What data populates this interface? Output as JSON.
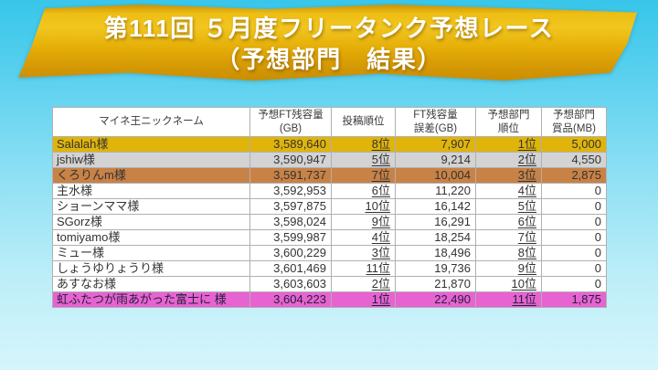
{
  "banner": {
    "line1": "第111回 ５月度フリータンク予想レース",
    "line2": "（予想部門　結果）",
    "gold_color": "#E8B410"
  },
  "table": {
    "headers": [
      "マイネ王ニックネーム",
      "予想FT残容量\n(GB)",
      "投稿順位",
      "FT残容量\n誤差(GB)",
      "予想部門\n順位",
      "予想部門\n賞品(MB)"
    ],
    "highlight_colors": {
      "gold": "#E0B40A",
      "silver": "#D3D3D3",
      "bronze": "#C88246",
      "pink": "#E763D2"
    },
    "rows": [
      {
        "nickname": "Salalah様",
        "forecast_gb": "3,589,640",
        "post_rank": "8位",
        "error_gb": "7,907",
        "dept_rank": "1位",
        "prize_mb": "5,000",
        "highlight": "gold"
      },
      {
        "nickname": "jshiw様",
        "forecast_gb": "3,590,947",
        "post_rank": "5位",
        "error_gb": "9,214",
        "dept_rank": "2位",
        "prize_mb": "4,550",
        "highlight": "silver"
      },
      {
        "nickname": "くろりんm様",
        "forecast_gb": "3,591,737",
        "post_rank": "7位",
        "error_gb": "10,004",
        "dept_rank": "3位",
        "prize_mb": "2,875",
        "highlight": "bronze"
      },
      {
        "nickname": "主水様",
        "forecast_gb": "3,592,953",
        "post_rank": "6位",
        "error_gb": "11,220",
        "dept_rank": "4位",
        "prize_mb": "0",
        "highlight": "none"
      },
      {
        "nickname": "ショーンママ様",
        "forecast_gb": "3,597,875",
        "post_rank": "10位",
        "error_gb": "16,142",
        "dept_rank": "5位",
        "prize_mb": "0",
        "highlight": "none"
      },
      {
        "nickname": "SGorz様",
        "forecast_gb": "3,598,024",
        "post_rank": "9位",
        "error_gb": "16,291",
        "dept_rank": "6位",
        "prize_mb": "0",
        "highlight": "none"
      },
      {
        "nickname": "tomiyamo様",
        "forecast_gb": "3,599,987",
        "post_rank": "4位",
        "error_gb": "18,254",
        "dept_rank": "7位",
        "prize_mb": "0",
        "highlight": "none"
      },
      {
        "nickname": "ミュー様",
        "forecast_gb": "3,600,229",
        "post_rank": "3位",
        "error_gb": "18,496",
        "dept_rank": "8位",
        "prize_mb": "0",
        "highlight": "none"
      },
      {
        "nickname": "しょうゆりょうり様",
        "forecast_gb": "3,601,469",
        "post_rank": "11位",
        "error_gb": "19,736",
        "dept_rank": "9位",
        "prize_mb": "0",
        "highlight": "none"
      },
      {
        "nickname": "あすなお様",
        "forecast_gb": "3,603,603",
        "post_rank": "2位",
        "error_gb": "21,870",
        "dept_rank": "10位",
        "prize_mb": "0",
        "highlight": "none"
      },
      {
        "nickname": "虹ふたつが雨あがった富士に 様",
        "forecast_gb": "3,604,223",
        "post_rank": "1位",
        "error_gb": "22,490",
        "dept_rank": "11位",
        "prize_mb": "1,875",
        "highlight": "pink"
      }
    ]
  }
}
